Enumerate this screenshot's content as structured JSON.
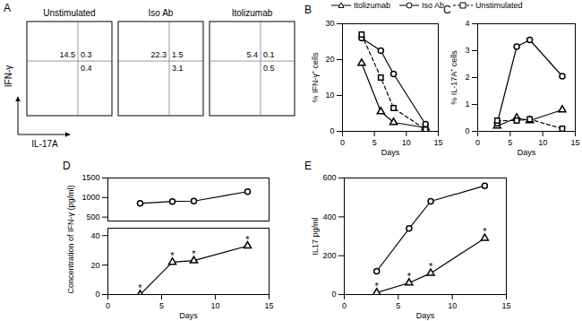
{
  "chart_data": [
    {
      "type": "quadrant_plots",
      "panel": "A",
      "xlabel": "IL-17A",
      "ylabel": "IFN-γ",
      "tick_labels": false,
      "plots": [
        {
          "title": "Unstimulated",
          "upper_left": 14.5,
          "upper_right": 0.3,
          "lower_right": 0.4
        },
        {
          "title": "Iso Ab",
          "upper_left": 22.3,
          "upper_right": 1.5,
          "lower_right": 3.1
        },
        {
          "title": "Itolizumab",
          "upper_left": 5.4,
          "upper_right": 0.1,
          "lower_right": 0.5
        }
      ]
    },
    {
      "type": "line",
      "panel": "B",
      "xlabel": "Days",
      "ylabel": "% IFN-γ⁺ cells",
      "x": [
        3,
        6,
        8,
        13
      ],
      "xlim": [
        0,
        15
      ],
      "xticks": [
        0,
        5,
        10,
        15
      ],
      "ylim": [
        0,
        30
      ],
      "yticks": [
        0,
        10,
        20,
        30
      ],
      "legend": "top",
      "series": [
        {
          "name": "Itolizumab",
          "color": "#000000",
          "marker": "triangle",
          "line_style": "solid",
          "values": [
            19,
            5.5,
            2.5,
            1
          ]
        },
        {
          "name": "Iso Ab",
          "color": "#000000",
          "marker": "circle",
          "line_style": "solid",
          "values": [
            26,
            22.5,
            16,
            2
          ]
        },
        {
          "name": "Unstimulated",
          "color": "#000000",
          "marker": "square",
          "line_style": "dashed",
          "values": [
            27,
            15,
            6.5,
            0.5
          ]
        }
      ]
    },
    {
      "type": "line",
      "panel": "C",
      "xlabel": "Days",
      "ylabel": "% IL-17A⁺ cells",
      "x": [
        3,
        6,
        8,
        13
      ],
      "xlim": [
        0,
        15
      ],
      "xticks": [
        0,
        5,
        10,
        15
      ],
      "ylim": [
        0,
        4
      ],
      "yticks": [
        0,
        1,
        2,
        3,
        4
      ],
      "series": [
        {
          "name": "Itolizumab",
          "color": "#000000",
          "marker": "triangle",
          "line_style": "solid",
          "values": [
            0.2,
            0.5,
            0.4,
            0.8
          ]
        },
        {
          "name": "Iso Ab",
          "color": "#000000",
          "marker": "circle",
          "line_style": "solid",
          "values": [
            0.3,
            3.15,
            3.4,
            2.05
          ]
        },
        {
          "name": "Unstimulated",
          "color": "#000000",
          "marker": "square",
          "line_style": "dashed",
          "values": [
            0.4,
            0.4,
            0.45,
            0.1
          ]
        }
      ]
    },
    {
      "type": "line",
      "panel": "D",
      "tick_labels": "y",
      "x": [
        3,
        6,
        8,
        13
      ],
      "xlim": [
        0,
        15
      ],
      "ylim": [
        400,
        1500
      ],
      "yticks": [
        500,
        1000,
        1500
      ],
      "series": [
        {
          "name": "Iso Ab",
          "color": "#000000",
          "marker": "circle",
          "line_style": "solid",
          "values": [
            850,
            900,
            910,
            1150
          ]
        }
      ]
    },
    {
      "type": "line",
      "xlabel": "Days",
      "ylabel": "Concentration of IFN-γ (pg/ml)",
      "x": [
        3,
        6,
        8,
        13
      ],
      "xlim": [
        0,
        15
      ],
      "xticks": [
        0,
        5,
        10,
        15
      ],
      "ylim": [
        0,
        45
      ],
      "yticks": [
        0,
        20,
        40
      ],
      "series": [
        {
          "name": "Itolizumab",
          "color": "#000000",
          "marker": "triangle",
          "line_style": "solid",
          "values": [
            0,
            22,
            23,
            33
          ]
        }
      ],
      "annotations": [
        {
          "x": 3,
          "y": 0,
          "text": "*"
        },
        {
          "x": 6,
          "y": 22,
          "text": "*"
        },
        {
          "x": 8,
          "y": 23,
          "text": "*"
        },
        {
          "x": 13,
          "y": 33,
          "text": "*"
        }
      ]
    },
    {
      "type": "line",
      "panel": "E",
      "xlabel": "Days",
      "ylabel": "IL17 pg/ml",
      "x": [
        3,
        6,
        8,
        13
      ],
      "xlim": [
        0,
        15
      ],
      "xticks": [
        0,
        5,
        10,
        15
      ],
      "ylim": [
        0,
        600
      ],
      "yticks": [
        0,
        200,
        400,
        600
      ],
      "series": [
        {
          "name": "Iso Ab",
          "color": "#000000",
          "marker": "circle",
          "line_style": "solid",
          "values": [
            120,
            340,
            480,
            560
          ]
        },
        {
          "name": "Itolizumab",
          "color": "#000000",
          "marker": "triangle",
          "line_style": "solid",
          "values": [
            10,
            60,
            110,
            290
          ]
        }
      ],
      "annotations": [
        {
          "x": 3,
          "y": 10,
          "text": "*"
        },
        {
          "x": 6,
          "y": 60,
          "text": "*"
        },
        {
          "x": 8,
          "y": 110,
          "text": "*"
        },
        {
          "x": 13,
          "y": 290,
          "text": "*"
        }
      ]
    }
  ]
}
